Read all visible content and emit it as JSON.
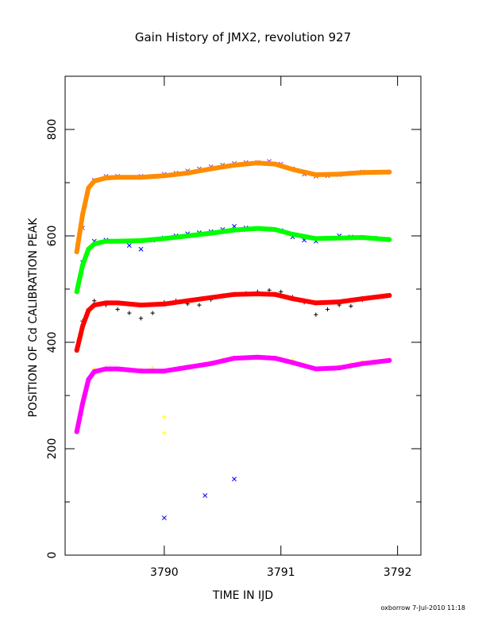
{
  "chart_data": {
    "type": "scatter",
    "title": "Gain History of JMX2, revolution 927",
    "xlabel": "TIME IN IJD",
    "ylabel": "POSITION OF Cd CALIBRATION PEAK",
    "xlim": [
      3789.15,
      3792.2
    ],
    "ylim": [
      0,
      900
    ],
    "x_ticks": [
      3790,
      3791,
      3792
    ],
    "y_ticks": [
      0,
      200,
      400,
      600,
      800
    ],
    "grid": false,
    "legend": "none",
    "footer": "oxborrow   7-Jul-2010 11:18",
    "series": [
      {
        "marker": "x",
        "color": "#8a2be2",
        "x": [
          3789.3,
          3789.4,
          3789.5,
          3789.6,
          3789.7,
          3789.8,
          3789.9,
          3790.0,
          3790.1,
          3790.2,
          3790.3,
          3790.4,
          3790.5,
          3790.6,
          3790.7,
          3790.8,
          3790.9,
          3791.0,
          3791.1,
          3791.2,
          3791.3,
          3791.4,
          3791.5,
          3791.6,
          3791.7,
          3791.8,
          3791.9
        ],
        "values": [
          615,
          705,
          712,
          712,
          710,
          712,
          712,
          716,
          718,
          722,
          726,
          730,
          733,
          736,
          738,
          738,
          740,
          735,
          726,
          716,
          712,
          713,
          715,
          718,
          720,
          720,
          720
        ]
      },
      {
        "marker": "line",
        "color": "#ff8c00",
        "x": [
          3789.25,
          3789.3,
          3789.35,
          3789.4,
          3789.5,
          3789.6,
          3789.8,
          3790.0,
          3790.2,
          3790.4,
          3790.6,
          3790.8,
          3790.95,
          3791.1,
          3791.3,
          3791.5,
          3791.7,
          3791.93
        ],
        "values": [
          570,
          640,
          690,
          703,
          709,
          710,
          710,
          713,
          718,
          726,
          733,
          737,
          735,
          725,
          715,
          716,
          719,
          720
        ]
      },
      {
        "marker": "x",
        "color": "#0000ff",
        "x": [
          3789.3,
          3789.4,
          3789.5,
          3789.6,
          3789.7,
          3789.8,
          3789.9,
          3790.0,
          3790.1,
          3790.2,
          3790.3,
          3790.4,
          3790.5,
          3790.6,
          3790.7,
          3790.8,
          3790.9,
          3791.0,
          3791.1,
          3791.2,
          3791.3,
          3791.4,
          3791.5,
          3791.6,
          3791.7,
          3791.8,
          3791.9,
          3790.0,
          3790.35,
          3790.6
        ],
        "values": [
          550,
          590,
          592,
          590,
          582,
          575,
          592,
          596,
          600,
          604,
          606,
          608,
          612,
          618,
          615,
          614,
          613,
          610,
          598,
          592,
          590,
          596,
          600,
          598,
          597,
          596,
          594,
          70,
          112,
          143
        ]
      },
      {
        "marker": "line",
        "color": "#00ff00",
        "x": [
          3789.25,
          3789.3,
          3789.35,
          3789.4,
          3789.5,
          3789.6,
          3789.8,
          3790.0,
          3790.2,
          3790.4,
          3790.6,
          3790.8,
          3790.95,
          3791.1,
          3791.3,
          3791.5,
          3791.7,
          3791.93
        ],
        "values": [
          495,
          545,
          575,
          585,
          590,
          590,
          591,
          595,
          600,
          605,
          611,
          614,
          612,
          603,
          595,
          596,
          597,
          593
        ]
      },
      {
        "marker": "+",
        "color": "#000000",
        "x": [
          3789.3,
          3789.4,
          3789.5,
          3789.6,
          3789.7,
          3789.8,
          3789.9,
          3790.0,
          3790.1,
          3790.2,
          3790.3,
          3790.4,
          3790.5,
          3790.6,
          3790.7,
          3790.8,
          3790.9,
          3791.0,
          3791.1,
          3791.2,
          3791.3,
          3791.4,
          3791.5,
          3791.6,
          3791.7,
          3791.8,
          3791.9
        ],
        "values": [
          440,
          478,
          470,
          462,
          455,
          445,
          455,
          475,
          478,
          472,
          470,
          480,
          488,
          490,
          492,
          495,
          498,
          495,
          485,
          475,
          452,
          462,
          470,
          468,
          480,
          485,
          488
        ]
      },
      {
        "marker": "line",
        "color": "#ff0000",
        "x": [
          3789.25,
          3789.3,
          3789.35,
          3789.4,
          3789.5,
          3789.6,
          3789.8,
          3790.0,
          3790.2,
          3790.4,
          3790.6,
          3790.8,
          3790.95,
          3791.1,
          3791.3,
          3791.5,
          3791.7,
          3791.93
        ],
        "values": [
          385,
          430,
          460,
          470,
          474,
          474,
          470,
          472,
          478,
          484,
          490,
          491,
          490,
          482,
          474,
          476,
          482,
          488
        ]
      },
      {
        "marker": "+",
        "color": "#ffff00",
        "x": [
          3789.3,
          3789.4,
          3789.5,
          3789.6,
          3789.7,
          3789.8,
          3789.9,
          3790.0,
          3790.1,
          3790.2,
          3790.3,
          3790.4,
          3790.5,
          3790.6,
          3790.7,
          3790.8,
          3790.9,
          3791.0,
          3791.1,
          3791.2,
          3791.3,
          3791.4,
          3791.5,
          3791.6,
          3791.7,
          3791.8,
          3791.9,
          3790.0,
          3790.0
        ],
        "values": [
          300,
          350,
          352,
          350,
          350,
          348,
          352,
          345,
          350,
          355,
          358,
          362,
          368,
          372,
          372,
          372,
          373,
          370,
          366,
          358,
          350,
          350,
          356,
          360,
          364,
          366,
          368,
          260,
          230
        ]
      },
      {
        "marker": "line",
        "color": "#ff00ff",
        "x": [
          3789.25,
          3789.3,
          3789.35,
          3789.4,
          3789.5,
          3789.6,
          3789.8,
          3790.0,
          3790.2,
          3790.4,
          3790.6,
          3790.8,
          3790.95,
          3791.1,
          3791.3,
          3791.5,
          3791.7,
          3791.93
        ],
        "values": [
          232,
          285,
          330,
          345,
          350,
          350,
          346,
          346,
          353,
          360,
          370,
          372,
          370,
          362,
          350,
          352,
          360,
          366
        ]
      }
    ]
  }
}
